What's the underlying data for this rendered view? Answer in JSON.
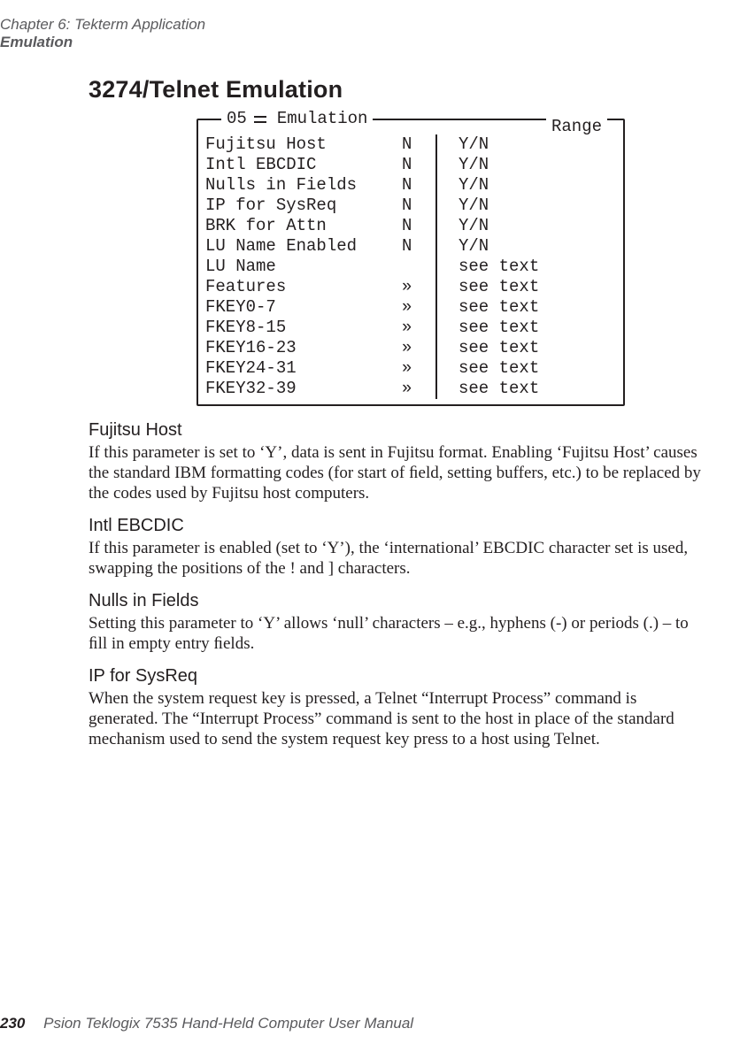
{
  "running_head": {
    "chapter": "Chapter  6:  Tekterm Application",
    "section": "Emulation"
  },
  "section_title": "3274/Telnet Emulation",
  "terminal": {
    "legend_num": "05",
    "legend_word": "Emulation",
    "range_label": "Range",
    "rows": [
      {
        "k": "Fujitsu Host",
        "v": "N",
        "r": "Y/N"
      },
      {
        "k": "Intl EBCDIC",
        "v": "N",
        "r": "Y/N"
      },
      {
        "k": "Nulls in Fields",
        "v": "N",
        "r": "Y/N"
      },
      {
        "k": "IP for SysReq",
        "v": "N",
        "r": "Y/N"
      },
      {
        "k": "BRK for Attn",
        "v": "N",
        "r": "Y/N"
      },
      {
        "k": "LU Name Enabled",
        "v": "N",
        "r": "Y/N"
      },
      {
        "k": "LU Name",
        "v": "",
        "r": "see text"
      },
      {
        "k": "Features",
        "v": "»",
        "r": "see text"
      },
      {
        "k": "FKEY0-7",
        "v": "»",
        "r": "see text"
      },
      {
        "k": "FKEY8-15",
        "v": "»",
        "r": "see text"
      },
      {
        "k": "FKEY16-23",
        "v": "»",
        "r": "see text"
      },
      {
        "k": "FKEY24-31",
        "v": "»",
        "r": "see text"
      },
      {
        "k": "FKEY32-39",
        "v": "»",
        "r": "see text"
      }
    ]
  },
  "subs": [
    {
      "head": "Fujitsu Host",
      "body": "If this parameter is set to ‘Y’, data is sent in Fujitsu format. Enabling ‘Fujitsu Host’ causes the standard IBM formatting codes (for start of ﬁeld, setting buffers, etc.) to be replaced by the codes used by Fujitsu host computers."
    },
    {
      "head": "Intl EBCDIC",
      "body": "If this parameter is enabled (set to ‘Y’), the ‘international’ EBCDIC character set is used, swapping the positions of the ! and ] characters."
    },
    {
      "head": "Nulls in Fields",
      "body": "Setting this parameter to ‘Y’ allows ‘null’ characters – e.g., hyphens (-) or periods (.) – to ﬁll in empty entry ﬁelds."
    },
    {
      "head": "IP for SysReq",
      "body": "When the system request key is pressed, a Telnet “Interrupt Process” command is generated. The “Interrupt Process” command is sent to the host in place of the standard mechanism used to send the system request key press to a host using Telnet."
    }
  ],
  "footer": {
    "page_number": "230",
    "manual_title": "Psion Teklogix 7535 Hand-Held Computer User Manual"
  }
}
